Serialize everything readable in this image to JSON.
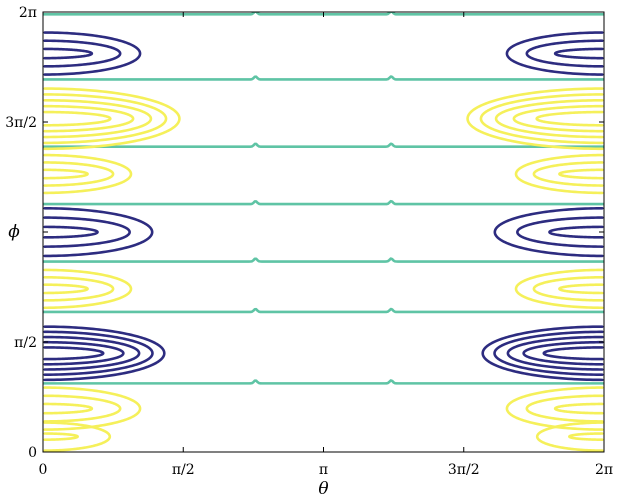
{
  "chart_data": {
    "type": "contour",
    "xlabel": "θ",
    "ylabel": "ϕ",
    "xlim": [
      0,
      6.283185307
    ],
    "ylim": [
      0,
      6.283185307
    ],
    "xticks": [
      {
        "value": 0,
        "label": "0"
      },
      {
        "value": 1.570796327,
        "label": "π/2"
      },
      {
        "value": 3.141592654,
        "label": "π"
      },
      {
        "value": 4.71238898,
        "label": "3π/2"
      },
      {
        "value": 6.283185307,
        "label": "2π"
      }
    ],
    "yticks": [
      {
        "value": 0,
        "label": "0"
      },
      {
        "value": 1.570796327,
        "label": "π/2"
      },
      {
        "value": 3.141592654,
        "label": ""
      },
      {
        "value": 4.71238898,
        "label": "3π/2"
      },
      {
        "value": 6.283185307,
        "label": "2π"
      }
    ],
    "grid": false,
    "colors": {
      "positive": "#f5f05a",
      "zero": "#5fc4a5",
      "negative": "#2d2c80"
    },
    "zero_level_phi": [
      0.98,
      2.0,
      2.72,
      3.54,
      4.36,
      5.32,
      6.25
    ],
    "lobes": [
      {
        "phi_center": 0.22,
        "half_width": 0.2,
        "sign": "positive",
        "rings": 2
      },
      {
        "phi_center": 0.62,
        "half_width": 0.3,
        "sign": "positive",
        "rings": 3
      },
      {
        "phi_center": 1.41,
        "half_width": 0.38,
        "sign": "negative",
        "rings": 5
      },
      {
        "phi_center": 2.33,
        "half_width": 0.27,
        "sign": "positive",
        "rings": 3
      },
      {
        "phi_center": 3.14,
        "half_width": 0.34,
        "sign": "negative",
        "rings": 3
      },
      {
        "phi_center": 3.97,
        "half_width": 0.27,
        "sign": "positive",
        "rings": 3
      },
      {
        "phi_center": 4.76,
        "half_width": 0.43,
        "sign": "positive",
        "rings": 5
      },
      {
        "phi_center": 5.69,
        "half_width": 0.3,
        "sign": "negative",
        "rings": 3
      }
    ]
  }
}
